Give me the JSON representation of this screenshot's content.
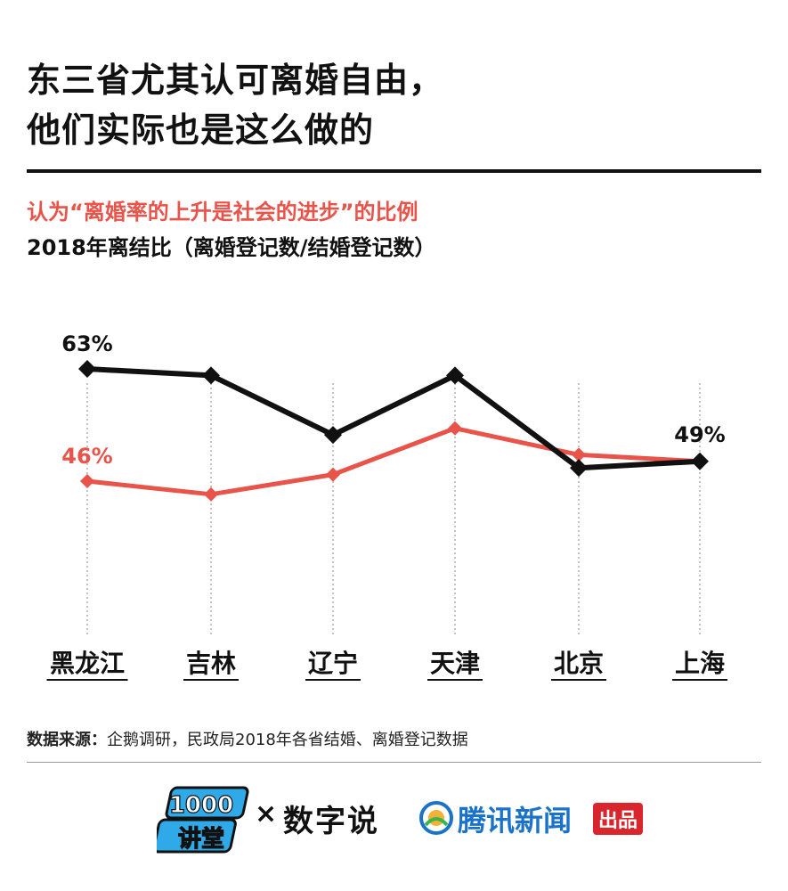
{
  "title": {
    "line1": "东三省尤其认可离婚自由，",
    "line2": "他们实际也是这么做的"
  },
  "colors": {
    "red": "#e8534a",
    "black": "#111111",
    "tencent_blue": "#1a73c8",
    "badge_red": "#d8262c"
  },
  "chart_data": {
    "type": "line",
    "categories": [
      "黑龙江",
      "吉林",
      "辽宁",
      "天津",
      "北京",
      "上海"
    ],
    "series": [
      {
        "name": "2018年离结比（离婚登记数/结婚登记数）",
        "color": "#111111",
        "values": [
          63,
          62,
          53,
          62,
          48,
          49
        ]
      },
      {
        "name": "认为“离婚率的上升是社会的进步”的比例",
        "color": "#e8534a",
        "values": [
          46,
          44,
          47,
          54,
          50,
          49
        ]
      }
    ],
    "data_labels": [
      {
        "series": 0,
        "index": 0,
        "text": "63%"
      },
      {
        "series": 1,
        "index": 0,
        "text": "46%"
      },
      {
        "series": 0,
        "index": 5,
        "text": "49%"
      }
    ],
    "ylim": [
      0,
      75
    ],
    "grid": "vertical-dotted"
  },
  "source": {
    "label": "数据来源：",
    "text": "企鹅调研，民政局2018年各省结婚、离婚登记数据"
  },
  "footer": {
    "logo_1000_line1": "1000",
    "logo_1000_line2": "讲堂",
    "times": "×",
    "logo_shu": "数字说",
    "tencent_name": "腾讯新闻",
    "tencent_badge": "出品"
  }
}
